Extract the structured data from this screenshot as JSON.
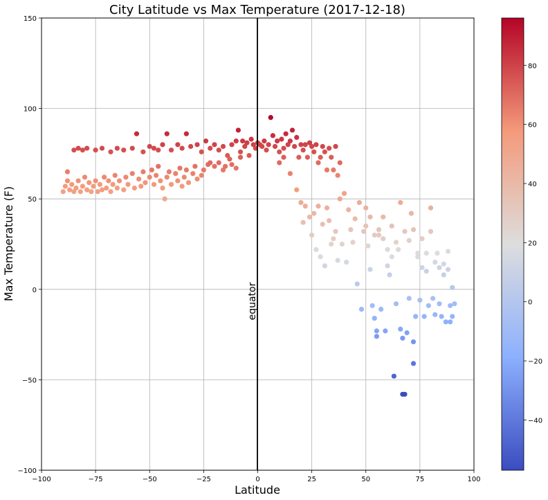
{
  "chart_data": {
    "type": "scatter",
    "title": "City Latitude vs Max Temperature (2017-12-18)",
    "xlabel": "Latitude",
    "ylabel": "Max Temperature (F)",
    "xlim": [
      -100,
      100
    ],
    "ylim": [
      -100,
      150
    ],
    "x_ticks": [
      "−100",
      "−75",
      "−50",
      "−25",
      "0",
      "25",
      "50",
      "75",
      "100"
    ],
    "y_ticks": [
      "−100",
      "−50",
      "0",
      "50",
      "100",
      "150"
    ],
    "grid": true,
    "annotation": {
      "text": "equator",
      "x": 0
    },
    "colorbar": {
      "range": [
        -57,
        96
      ],
      "ticks": [
        "−40",
        "−20",
        "0",
        "20",
        "40",
        "60",
        "80"
      ],
      "colormap": "coolwarm",
      "low_color": "#3b4cc0",
      "mid_color": "#dddddd",
      "high_color": "#b40426"
    },
    "points": [
      [
        -90,
        54
      ],
      [
        -89,
        57
      ],
      [
        -88,
        60
      ],
      [
        -88,
        65
      ],
      [
        -87,
        55
      ],
      [
        -86,
        58
      ],
      [
        -85,
        54
      ],
      [
        -84,
        56
      ],
      [
        -83,
        60
      ],
      [
        -82,
        54
      ],
      [
        -81,
        57
      ],
      [
        -80,
        62
      ],
      [
        -79,
        55
      ],
      [
        -78,
        59
      ],
      [
        -77,
        54
      ],
      [
        -76,
        57
      ],
      [
        -75,
        60
      ],
      [
        -74,
        54
      ],
      [
        -73,
        58
      ],
      [
        -72,
        55
      ],
      [
        -71,
        62
      ],
      [
        -70,
        56
      ],
      [
        -69,
        60
      ],
      [
        -68,
        54
      ],
      [
        -67,
        58
      ],
      [
        -66,
        63
      ],
      [
        -65,
        56
      ],
      [
        -64,
        60
      ],
      [
        -62,
        55
      ],
      [
        -61,
        62
      ],
      [
        -60,
        58
      ],
      [
        -58,
        64
      ],
      [
        -57,
        56
      ],
      [
        -55,
        61
      ],
      [
        -54,
        57
      ],
      [
        -53,
        65
      ],
      [
        -52,
        59
      ],
      [
        -50,
        62
      ],
      [
        -49,
        66
      ],
      [
        -48,
        58
      ],
      [
        -47,
        63
      ],
      [
        -46,
        68
      ],
      [
        -45,
        60
      ],
      [
        -44,
        56
      ],
      [
        -43,
        50
      ],
      [
        -42,
        62
      ],
      [
        -41,
        65
      ],
      [
        -40,
        58
      ],
      [
        -38,
        64
      ],
      [
        -37,
        60
      ],
      [
        -36,
        67
      ],
      [
        -35,
        57
      ],
      [
        -34,
        62
      ],
      [
        -33,
        66
      ],
      [
        -32,
        59
      ],
      [
        -30,
        64
      ],
      [
        -29,
        68
      ],
      [
        -28,
        61
      ],
      [
        -26,
        63
      ],
      [
        -25,
        66
      ],
      [
        -23,
        69
      ],
      [
        -22,
        70
      ],
      [
        -20,
        68
      ],
      [
        -18,
        70
      ],
      [
        -16,
        66
      ],
      [
        -15,
        68
      ],
      [
        -13,
        72
      ],
      [
        -12,
        69
      ],
      [
        -10,
        67
      ],
      [
        -8,
        73
      ],
      [
        -85,
        77
      ],
      [
        -83,
        78
      ],
      [
        -81,
        77
      ],
      [
        -79,
        78
      ],
      [
        -75,
        77
      ],
      [
        -72,
        78
      ],
      [
        -68,
        76
      ],
      [
        -65,
        78
      ],
      [
        -62,
        77
      ],
      [
        -58,
        78
      ],
      [
        -56,
        86
      ],
      [
        -53,
        76
      ],
      [
        -50,
        79
      ],
      [
        -48,
        78
      ],
      [
        -46,
        77
      ],
      [
        -44,
        80
      ],
      [
        -42,
        86
      ],
      [
        -40,
        77
      ],
      [
        -37,
        80
      ],
      [
        -35,
        78
      ],
      [
        -33,
        86
      ],
      [
        -31,
        79
      ],
      [
        -28,
        80
      ],
      [
        -26,
        76
      ],
      [
        -24,
        82
      ],
      [
        -22,
        78
      ],
      [
        -20,
        80
      ],
      [
        -18,
        77
      ],
      [
        -16,
        79
      ],
      [
        -14,
        74
      ],
      [
        -12,
        80
      ],
      [
        -10,
        82
      ],
      [
        -9,
        88
      ],
      [
        -8,
        76
      ],
      [
        -7,
        82
      ],
      [
        -6,
        79
      ],
      [
        -5,
        81
      ],
      [
        -4,
        74
      ],
      [
        -3,
        83
      ],
      [
        -2,
        80
      ],
      [
        -1,
        78
      ],
      [
        0,
        81
      ],
      [
        1,
        80
      ],
      [
        2,
        79
      ],
      [
        3,
        82
      ],
      [
        4,
        77
      ],
      [
        5,
        80
      ],
      [
        6,
        95
      ],
      [
        7,
        85
      ],
      [
        8,
        79
      ],
      [
        9,
        82
      ],
      [
        10,
        76
      ],
      [
        11,
        83
      ],
      [
        12,
        78
      ],
      [
        13,
        86
      ],
      [
        14,
        80
      ],
      [
        15,
        82
      ],
      [
        16,
        88
      ],
      [
        17,
        79
      ],
      [
        18,
        84
      ],
      [
        19,
        73
      ],
      [
        20,
        80
      ],
      [
        21,
        77
      ],
      [
        22,
        80
      ],
      [
        23,
        73
      ],
      [
        24,
        81
      ],
      [
        25,
        79
      ],
      [
        26,
        76
      ],
      [
        27,
        80
      ],
      [
        28,
        70
      ],
      [
        29,
        73
      ],
      [
        30,
        79
      ],
      [
        31,
        76
      ],
      [
        32,
        66
      ],
      [
        33,
        78
      ],
      [
        34,
        73
      ],
      [
        35,
        66
      ],
      [
        36,
        79
      ],
      [
        37,
        63
      ],
      [
        38,
        70
      ],
      [
        10,
        70
      ],
      [
        12,
        73
      ],
      [
        15,
        64
      ],
      [
        18,
        55
      ],
      [
        20,
        48
      ],
      [
        21,
        37
      ],
      [
        22,
        46
      ],
      [
        24,
        40
      ],
      [
        25,
        30
      ],
      [
        26,
        42
      ],
      [
        27,
        22
      ],
      [
        28,
        46
      ],
      [
        29,
        18
      ],
      [
        30,
        36
      ],
      [
        31,
        13
      ],
      [
        32,
        45
      ],
      [
        33,
        38
      ],
      [
        34,
        25
      ],
      [
        35,
        28
      ],
      [
        36,
        32
      ],
      [
        37,
        16
      ],
      [
        38,
        50
      ],
      [
        39,
        25
      ],
      [
        40,
        53
      ],
      [
        41,
        15
      ],
      [
        42,
        44
      ],
      [
        43,
        33
      ],
      [
        44,
        26
      ],
      [
        45,
        39
      ],
      [
        46,
        3
      ],
      [
        47,
        48
      ],
      [
        48,
        -11
      ],
      [
        49,
        32
      ],
      [
        50,
        35
      ],
      [
        51,
        24
      ],
      [
        52,
        11
      ],
      [
        53,
        -9
      ],
      [
        54,
        -16
      ],
      [
        55,
        -26
      ],
      [
        55,
        -23
      ],
      [
        56,
        30
      ],
      [
        57,
        -11
      ],
      [
        58,
        40
      ],
      [
        59,
        -23
      ],
      [
        60,
        13
      ],
      [
        61,
        8
      ],
      [
        62,
        35
      ],
      [
        63,
        -48
      ],
      [
        64,
        -8
      ],
      [
        65,
        22
      ],
      [
        66,
        -22
      ],
      [
        67,
        -27
      ],
      [
        67,
        -58
      ],
      [
        68,
        -58
      ],
      [
        69,
        -24
      ],
      [
        70,
        -5
      ],
      [
        71,
        42
      ],
      [
        72,
        -29
      ],
      [
        72,
        -41
      ],
      [
        73,
        -15
      ],
      [
        74,
        20
      ],
      [
        75,
        -6
      ],
      [
        76,
        28
      ],
      [
        77,
        -15
      ],
      [
        78,
        10
      ],
      [
        79,
        -9
      ],
      [
        80,
        45
      ],
      [
        81,
        -5
      ],
      [
        82,
        -14
      ],
      [
        83,
        20
      ],
      [
        84,
        -8
      ],
      [
        85,
        -15
      ],
      [
        86,
        8
      ],
      [
        87,
        -18
      ],
      [
        88,
        21
      ],
      [
        89,
        -9
      ],
      [
        90,
        -15
      ],
      [
        90,
        1
      ],
      [
        91,
        -8
      ],
      [
        89,
        -18
      ],
      [
        50,
        45
      ],
      [
        52,
        40
      ],
      [
        54,
        30
      ],
      [
        56,
        33
      ],
      [
        58,
        28
      ],
      [
        60,
        22
      ],
      [
        62,
        18
      ],
      [
        64,
        26
      ],
      [
        66,
        48
      ],
      [
        68,
        32
      ],
      [
        70,
        27
      ],
      [
        72,
        33
      ],
      [
        74,
        18
      ],
      [
        76,
        12
      ],
      [
        78,
        20
      ],
      [
        80,
        32
      ],
      [
        82,
        15
      ],
      [
        84,
        12
      ],
      [
        86,
        14
      ],
      [
        88,
        11
      ]
    ]
  }
}
